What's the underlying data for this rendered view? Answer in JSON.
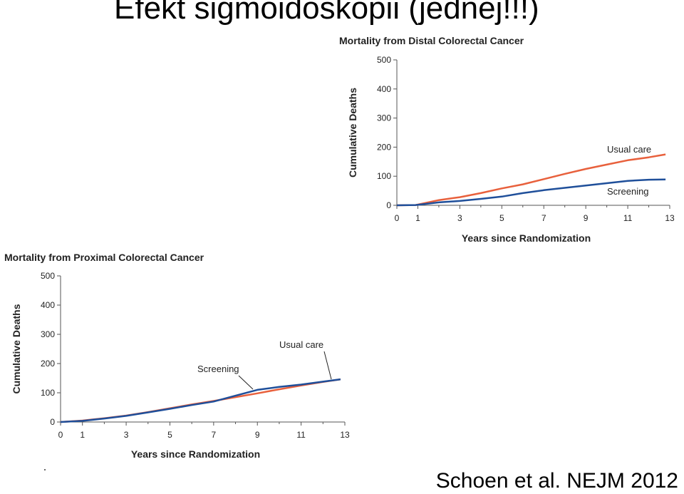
{
  "slide": {
    "title": "Efekt sigmoidoskopii (jednej!!!)",
    "citation": "Schoen et al. NEJM 2012"
  },
  "colors": {
    "usual_care": "#e8603c",
    "screening": "#1f4f9a",
    "axis": "#555555"
  },
  "chart_data": [
    {
      "type": "line",
      "title": "Mortality from Distal Colorectal Cancer",
      "xlabel": "Years since Randomization",
      "ylabel": "Cumulative Deaths",
      "xlim": [
        0,
        13
      ],
      "ylim": [
        0,
        500
      ],
      "xticks": [
        0,
        1,
        3,
        5,
        7,
        9,
        11,
        13
      ],
      "yticks": [
        0,
        100,
        200,
        300,
        400,
        500
      ],
      "grid": false,
      "series": [
        {
          "name": "Usual care",
          "x": [
            0,
            0.9,
            1.5,
            2,
            3,
            4,
            5,
            6,
            7,
            8,
            9,
            10,
            11,
            12,
            12.8
          ],
          "y": [
            0,
            1,
            10,
            18,
            28,
            42,
            58,
            72,
            90,
            108,
            125,
            140,
            155,
            165,
            175
          ]
        },
        {
          "name": "Screening",
          "x": [
            0,
            0.9,
            1.5,
            2,
            3,
            4,
            5,
            6,
            7,
            8,
            9,
            10,
            11,
            12,
            12.8
          ],
          "y": [
            0,
            1,
            6,
            10,
            15,
            22,
            30,
            42,
            52,
            60,
            68,
            76,
            84,
            88,
            89
          ]
        }
      ]
    },
    {
      "type": "line",
      "title": "Mortality from Proximal Colorectal Cancer",
      "xlabel": "Years since Randomization",
      "ylabel": "Cumulative Deaths",
      "xlim": [
        0,
        13
      ],
      "ylim": [
        0,
        500
      ],
      "xticks": [
        0,
        1,
        3,
        5,
        7,
        9,
        11,
        13
      ],
      "yticks": [
        0,
        100,
        200,
        300,
        400,
        500
      ],
      "grid": false,
      "series": [
        {
          "name": "Usual care",
          "x": [
            0,
            1,
            2,
            3,
            4,
            5,
            6,
            7,
            8,
            9,
            10,
            11,
            12,
            12.8
          ],
          "y": [
            0,
            5,
            13,
            22,
            34,
            47,
            60,
            72,
            85,
            98,
            112,
            125,
            137,
            146
          ]
        },
        {
          "name": "Screening",
          "x": [
            0,
            1,
            2,
            3,
            4,
            5,
            6,
            7,
            8,
            9,
            10,
            11,
            12,
            12.8
          ],
          "y": [
            0,
            4,
            12,
            21,
            33,
            45,
            58,
            70,
            90,
            110,
            120,
            128,
            138,
            146
          ]
        }
      ]
    }
  ]
}
